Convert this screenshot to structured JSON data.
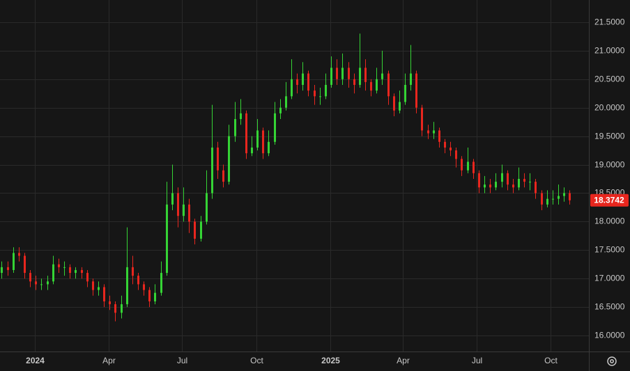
{
  "chart_data": {
    "type": "candlestick",
    "up_color": "#35d435",
    "down_color": "#e8261e",
    "grid": true,
    "xlim": [
      -0.3,
      103.4
    ],
    "ylim": [
      15.72,
      21.89
    ],
    "xticks": [
      {
        "value": 5.8,
        "label": "2024"
      },
      {
        "value": 18.8,
        "label": "Apr"
      },
      {
        "value": 31.7,
        "label": "Jul"
      },
      {
        "value": 44.9,
        "label": "Oct"
      },
      {
        "value": 57.9,
        "label": "2025"
      },
      {
        "value": 70.6,
        "label": "Apr"
      },
      {
        "value": 83.6,
        "label": "Jul"
      },
      {
        "value": 96.6,
        "label": "Oct"
      }
    ],
    "yticks": [
      {
        "value": 16,
        "label": "16.0000"
      },
      {
        "value": 16.5,
        "label": "16.5000"
      },
      {
        "value": 17,
        "label": "17.0000"
      },
      {
        "value": 17.5,
        "label": "17.5000"
      },
      {
        "value": 18,
        "label": "18.0000"
      },
      {
        "value": 18.5,
        "label": "18.5000"
      },
      {
        "value": 19,
        "label": "19.0000"
      },
      {
        "value": 19.5,
        "label": "19.5000"
      },
      {
        "value": 20,
        "label": "20.0000"
      },
      {
        "value": 20.5,
        "label": "20.5000"
      },
      {
        "value": 21,
        "label": "21.0000"
      },
      {
        "value": 21.5,
        "label": "21.5000"
      }
    ],
    "x": [
      0,
      1,
      2,
      3,
      4,
      5,
      6,
      7,
      8,
      9,
      10,
      11,
      12,
      13,
      14,
      15,
      16,
      17,
      18,
      19,
      20,
      21,
      22,
      23,
      24,
      25,
      26,
      27,
      28,
      29,
      30,
      31,
      32,
      33,
      34,
      35,
      36,
      37,
      38,
      39,
      40,
      41,
      42,
      43,
      44,
      45,
      46,
      47,
      48,
      49,
      50,
      51,
      52,
      53,
      54,
      55,
      56,
      57,
      58,
      59,
      60,
      61,
      62,
      63,
      64,
      65,
      66,
      67,
      68,
      69,
      70,
      71,
      72,
      73,
      74,
      75,
      76,
      77,
      78,
      79,
      80,
      81,
      82,
      83,
      84,
      85,
      86,
      87,
      88,
      89,
      90,
      91,
      92,
      93,
      94,
      95,
      96,
      97,
      98,
      99,
      100
    ],
    "open": [
      17.1,
      17.2,
      17.15,
      17.45,
      17.4,
      17.1,
      16.95,
      16.9,
      16.9,
      16.95,
      17.25,
      17.2,
      17.2,
      17.1,
      17.15,
      17.1,
      16.95,
      16.8,
      16.85,
      16.6,
      16.55,
      16.4,
      16.55,
      17.2,
      17.05,
      16.9,
      16.8,
      16.6,
      16.75,
      17.1,
      18.3,
      18.5,
      18.1,
      18.3,
      18.0,
      17.7,
      18.0,
      18.5,
      19.3,
      18.9,
      18.7,
      19.5,
      19.8,
      19.9,
      19.2,
      19.3,
      19.6,
      19.2,
      19.4,
      19.9,
      20.0,
      20.2,
      20.5,
      20.4,
      20.6,
      20.3,
      20.2,
      20.2,
      20.4,
      20.7,
      20.5,
      20.7,
      20.5,
      20.4,
      20.7,
      20.45,
      20.3,
      20.5,
      20.6,
      20.2,
      19.95,
      20.1,
      20.4,
      20.6,
      20.0,
      19.6,
      19.55,
      19.6,
      19.4,
      19.3,
      19.25,
      19.1,
      18.9,
      19.05,
      18.85,
      18.6,
      18.65,
      18.6,
      18.7,
      18.85,
      18.65,
      18.6,
      18.75,
      18.7,
      18.7,
      18.5,
      18.3,
      18.4,
      18.4,
      18.45,
      18.5
    ],
    "high": [
      17.3,
      17.3,
      17.55,
      17.55,
      17.45,
      17.15,
      17.05,
      17.0,
      17.05,
      17.4,
      17.35,
      17.3,
      17.25,
      17.2,
      17.2,
      17.15,
      17.0,
      16.95,
      16.9,
      16.7,
      16.6,
      16.7,
      17.9,
      17.4,
      17.1,
      16.95,
      16.85,
      16.9,
      17.3,
      18.7,
      19.0,
      18.6,
      18.6,
      18.4,
      18.05,
      18.1,
      18.9,
      20.05,
      19.4,
      19.0,
      19.7,
      20.1,
      20.15,
      19.95,
      19.5,
      19.8,
      19.65,
      19.6,
      20.1,
      20.15,
      20.45,
      20.85,
      20.6,
      20.8,
      20.65,
      20.4,
      20.35,
      20.6,
      20.9,
      20.85,
      20.95,
      20.8,
      20.6,
      21.3,
      20.85,
      20.5,
      20.7,
      21.0,
      20.65,
      20.25,
      20.3,
      20.6,
      21.1,
      20.65,
      20.05,
      19.7,
      19.75,
      19.65,
      19.45,
      19.4,
      19.3,
      19.15,
      19.3,
      19.1,
      18.9,
      18.8,
      18.75,
      18.85,
      19.0,
      18.9,
      18.75,
      18.95,
      18.85,
      18.85,
      18.75,
      18.55,
      18.55,
      18.55,
      18.65,
      18.6,
      18.55
    ],
    "low": [
      17.0,
      17.05,
      17.1,
      17.3,
      17.0,
      16.85,
      16.8,
      16.8,
      16.8,
      16.9,
      17.1,
      17.05,
      17.0,
      17.0,
      17.0,
      16.85,
      16.7,
      16.7,
      16.5,
      16.45,
      16.25,
      16.3,
      16.5,
      16.9,
      16.8,
      16.7,
      16.5,
      16.55,
      16.7,
      17.05,
      18.2,
      17.9,
      18.0,
      17.8,
      17.6,
      17.65,
      17.95,
      18.4,
      18.75,
      18.6,
      18.65,
      19.4,
      19.7,
      19.1,
      19.15,
      19.25,
      19.1,
      19.15,
      19.35,
      19.8,
      19.95,
      20.15,
      20.25,
      20.3,
      20.2,
      20.05,
      20.05,
      20.15,
      20.35,
      20.4,
      20.4,
      20.35,
      20.25,
      20.35,
      20.3,
      20.2,
      20.25,
      20.4,
      20.05,
      19.85,
      19.9,
      20.05,
      20.3,
      19.9,
      19.5,
      19.45,
      19.45,
      19.3,
      19.2,
      19.15,
      18.95,
      18.8,
      18.85,
      18.75,
      18.5,
      18.5,
      18.5,
      18.55,
      18.6,
      18.55,
      18.5,
      18.55,
      18.6,
      18.55,
      18.4,
      18.2,
      18.25,
      18.3,
      18.3,
      18.35,
      18.3
    ],
    "close": [
      17.2,
      17.15,
      17.45,
      17.4,
      17.1,
      16.95,
      16.9,
      16.9,
      16.95,
      17.25,
      17.2,
      17.2,
      17.1,
      17.15,
      17.1,
      16.95,
      16.8,
      16.85,
      16.6,
      16.55,
      16.4,
      16.55,
      17.2,
      17.05,
      16.9,
      16.8,
      16.6,
      16.75,
      17.1,
      18.3,
      18.5,
      18.1,
      18.3,
      18.0,
      17.7,
      18.0,
      18.5,
      19.3,
      18.9,
      18.7,
      19.5,
      19.8,
      19.9,
      19.2,
      19.3,
      19.6,
      19.2,
      19.4,
      19.9,
      20.0,
      20.2,
      20.5,
      20.4,
      20.6,
      20.3,
      20.2,
      20.2,
      20.4,
      20.7,
      20.5,
      20.7,
      20.5,
      20.4,
      20.7,
      20.45,
      20.3,
      20.5,
      20.6,
      20.2,
      19.95,
      20.1,
      20.4,
      20.6,
      20.0,
      19.6,
      19.55,
      19.6,
      19.4,
      19.3,
      19.25,
      19.1,
      18.9,
      19.05,
      18.85,
      18.6,
      18.65,
      18.6,
      18.7,
      18.85,
      18.65,
      18.6,
      18.75,
      18.7,
      18.7,
      18.5,
      18.3,
      18.4,
      18.4,
      18.45,
      18.5,
      18.3742
    ]
  }
}
